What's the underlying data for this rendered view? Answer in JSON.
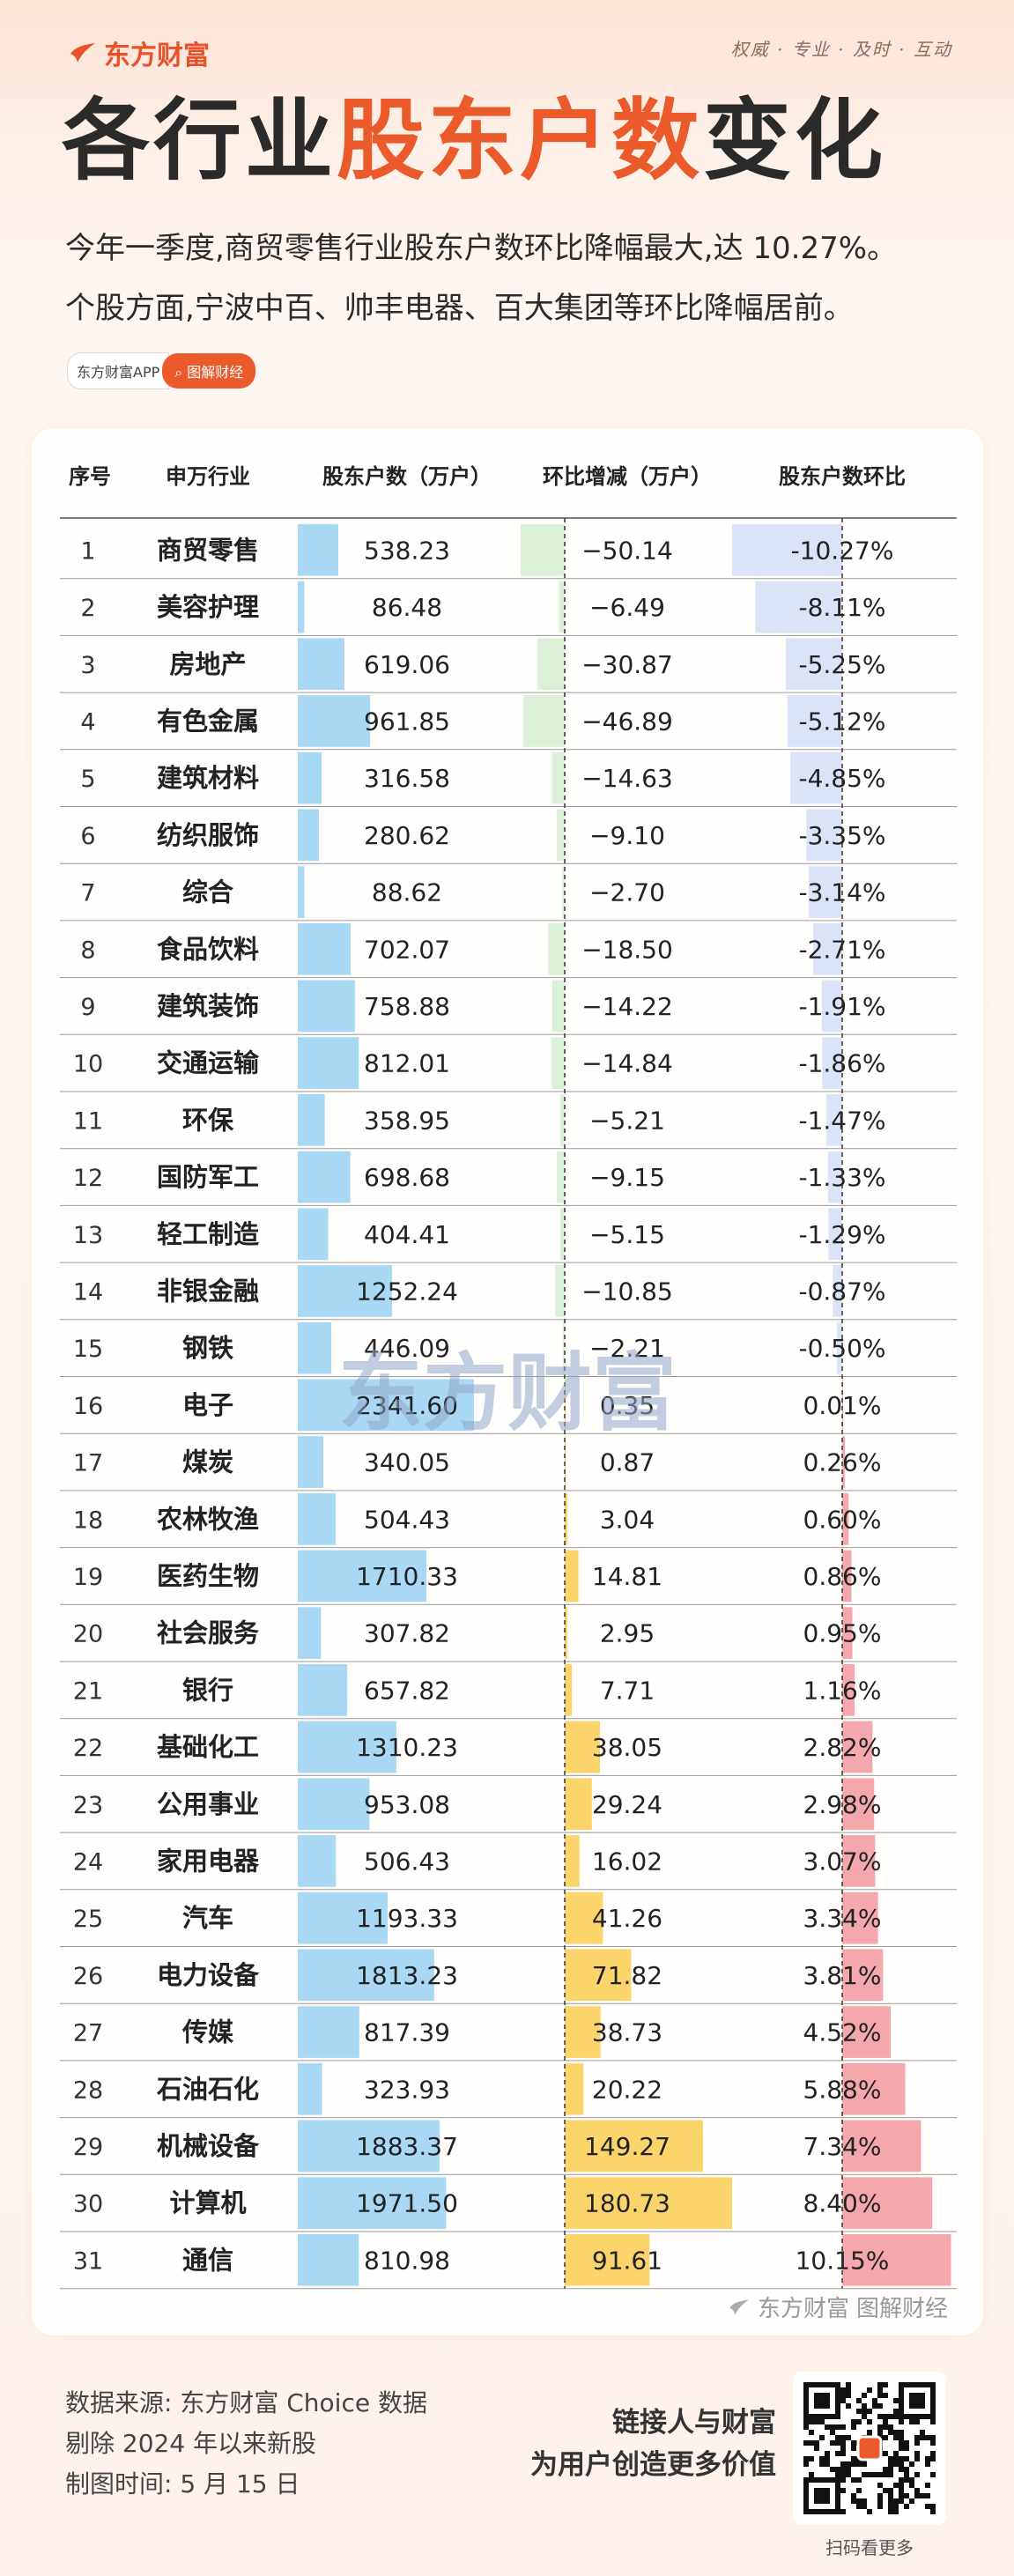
{
  "header": {
    "brand": "东方财富",
    "slogan": "权威 · 专业 · 及时 · 互动",
    "title_part1": "各行业",
    "title_part2": "股东户数",
    "title_part3": "变化",
    "subtitle_line1": "今年一季度,商贸零售行业股东户数环比降幅最大,达 10.27%。",
    "subtitle_line2": "个股方面,宁波中百、帅丰电器、百大集团等环比降幅居前。",
    "tag_app": "东方财富APP",
    "tag_button": "图解财经"
  },
  "table_header": {
    "rank": "序号",
    "industry": "申万行业",
    "holders": "股东户数（万户）",
    "change": "环比增减（万户）",
    "pct": "股东户数环比"
  },
  "chart_data": {
    "type": "table",
    "columns": [
      "序号",
      "申万行业",
      "股东户数（万户）",
      "环比增减（万户）",
      "股东户数环比"
    ],
    "rows": [
      {
        "rank": "1",
        "industry": "商贸零售",
        "holders": "538.23",
        "change": "−50.14",
        "pct": "-10.27%"
      },
      {
        "rank": "2",
        "industry": "美容护理",
        "holders": "86.48",
        "change": "−6.49",
        "pct": "-8.11%"
      },
      {
        "rank": "3",
        "industry": "房地产",
        "holders": "619.06",
        "change": "−30.87",
        "pct": "-5.25%"
      },
      {
        "rank": "4",
        "industry": "有色金属",
        "holders": "961.85",
        "change": "−46.89",
        "pct": "-5.12%"
      },
      {
        "rank": "5",
        "industry": "建筑材料",
        "holders": "316.58",
        "change": "−14.63",
        "pct": "-4.85%"
      },
      {
        "rank": "6",
        "industry": "纺织服饰",
        "holders": "280.62",
        "change": "−9.10",
        "pct": "-3.35%"
      },
      {
        "rank": "7",
        "industry": "综合",
        "holders": "88.62",
        "change": "−2.70",
        "pct": "-3.14%"
      },
      {
        "rank": "8",
        "industry": "食品饮料",
        "holders": "702.07",
        "change": "−18.50",
        "pct": "-2.71%"
      },
      {
        "rank": "9",
        "industry": "建筑装饰",
        "holders": "758.88",
        "change": "−14.22",
        "pct": "-1.91%"
      },
      {
        "rank": "10",
        "industry": "交通运输",
        "holders": "812.01",
        "change": "−14.84",
        "pct": "-1.86%"
      },
      {
        "rank": "11",
        "industry": "环保",
        "holders": "358.95",
        "change": "−5.21",
        "pct": "-1.47%"
      },
      {
        "rank": "12",
        "industry": "国防军工",
        "holders": "698.68",
        "change": "−9.15",
        "pct": "-1.33%"
      },
      {
        "rank": "13",
        "industry": "轻工制造",
        "holders": "404.41",
        "change": "−5.15",
        "pct": "-1.29%"
      },
      {
        "rank": "14",
        "industry": "非银金融",
        "holders": "1252.24",
        "change": "−10.85",
        "pct": "-0.87%"
      },
      {
        "rank": "15",
        "industry": "钢铁",
        "holders": "446.09",
        "change": "−2.21",
        "pct": "-0.50%"
      },
      {
        "rank": "16",
        "industry": "电子",
        "holders": "2341.60",
        "change": "0.35",
        "pct": "0.01%"
      },
      {
        "rank": "17",
        "industry": "煤炭",
        "holders": "340.05",
        "change": "0.87",
        "pct": "0.26%"
      },
      {
        "rank": "18",
        "industry": "农林牧渔",
        "holders": "504.43",
        "change": "3.04",
        "pct": "0.60%"
      },
      {
        "rank": "19",
        "industry": "医药生物",
        "holders": "1710.33",
        "change": "14.81",
        "pct": "0.86%"
      },
      {
        "rank": "20",
        "industry": "社会服务",
        "holders": "307.82",
        "change": "2.95",
        "pct": "0.95%"
      },
      {
        "rank": "21",
        "industry": "银行",
        "holders": "657.82",
        "change": "7.71",
        "pct": "1.16%"
      },
      {
        "rank": "22",
        "industry": "基础化工",
        "holders": "1310.23",
        "change": "38.05",
        "pct": "2.82%"
      },
      {
        "rank": "23",
        "industry": "公用事业",
        "holders": "953.08",
        "change": "29.24",
        "pct": "2.98%"
      },
      {
        "rank": "24",
        "industry": "家用电器",
        "holders": "506.43",
        "change": "16.02",
        "pct": "3.07%"
      },
      {
        "rank": "25",
        "industry": "汽车",
        "holders": "1193.33",
        "change": "41.26",
        "pct": "3.34%"
      },
      {
        "rank": "26",
        "industry": "电力设备",
        "holders": "1813.23",
        "change": "71.82",
        "pct": "3.81%"
      },
      {
        "rank": "27",
        "industry": "传媒",
        "holders": "817.39",
        "change": "38.73",
        "pct": "4.52%"
      },
      {
        "rank": "28",
        "industry": "石油石化",
        "holders": "323.93",
        "change": "20.22",
        "pct": "5.88%"
      },
      {
        "rank": "29",
        "industry": "机械设备",
        "holders": "1883.37",
        "change": "149.27",
        "pct": "7.34%"
      },
      {
        "rank": "30",
        "industry": "计算机",
        "holders": "1971.50",
        "change": "180.73",
        "pct": "8.40%"
      },
      {
        "rank": "31",
        "industry": "通信",
        "holders": "810.98",
        "change": "91.61",
        "pct": "10.15%"
      }
    ],
    "bar_values": {
      "holders": [
        538.23,
        86.48,
        619.06,
        961.85,
        316.58,
        280.62,
        88.62,
        702.07,
        758.88,
        812.01,
        358.95,
        698.68,
        404.41,
        1252.24,
        446.09,
        2341.6,
        340.05,
        504.43,
        1710.33,
        307.82,
        657.82,
        1310.23,
        953.08,
        506.43,
        1193.33,
        1813.23,
        817.39,
        323.93,
        1883.37,
        1971.5,
        810.98
      ],
      "change": [
        -50.14,
        -6.49,
        -30.87,
        -46.89,
        -14.63,
        -9.1,
        -2.7,
        -18.5,
        -14.22,
        -14.84,
        -5.21,
        -9.15,
        -5.15,
        -10.85,
        -2.21,
        0.35,
        0.87,
        3.04,
        14.81,
        2.95,
        7.71,
        38.05,
        29.24,
        16.02,
        41.26,
        71.82,
        38.73,
        20.22,
        149.27,
        180.73,
        91.61
      ],
      "pct": [
        -10.27,
        -8.11,
        -5.25,
        -5.12,
        -4.85,
        -3.35,
        -3.14,
        -2.71,
        -1.91,
        -1.86,
        -1.47,
        -1.33,
        -1.29,
        -0.87,
        -0.5,
        0.01,
        0.26,
        0.6,
        0.86,
        0.95,
        1.16,
        2.82,
        2.98,
        3.07,
        3.34,
        3.81,
        4.52,
        5.88,
        7.34,
        8.4,
        10.15
      ]
    },
    "colors": {
      "holders_bar": "#a9d8f5",
      "change_negative": "#dcf0d8",
      "change_positive": "#fbd56b",
      "pct_negative": "#dbe4f6",
      "pct_positive": "#f4a8ad",
      "accent": "#ea5a2a"
    }
  },
  "watermark": "东方财富",
  "card_footer": {
    "brand": "东方财富",
    "section": "图解财经"
  },
  "footer": {
    "source": "数据来源: 东方财富 Choice 数据",
    "note": "剔除 2024 年以来新股",
    "date": "制图时间: 5 月 15 日",
    "slogan1": "链接人与财富",
    "slogan2": "为用户创造更多价值",
    "qr_caption": "扫码看更多"
  }
}
